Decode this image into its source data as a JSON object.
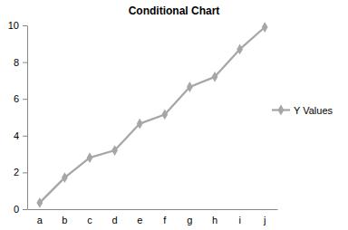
{
  "chart_data": {
    "type": "line",
    "title": "Conditional Chart",
    "categories": [
      "a",
      "b",
      "c",
      "d",
      "e",
      "f",
      "g",
      "h",
      "i",
      "j"
    ],
    "series": [
      {
        "name": "Y Values",
        "color": "#a6a6a6",
        "marker": "diamond",
        "values": [
          0.35,
          1.72,
          2.8,
          3.2,
          4.65,
          5.15,
          6.65,
          7.2,
          8.7,
          9.9
        ]
      }
    ],
    "ylim": [
      0,
      10
    ],
    "yticks": [
      0,
      2,
      4,
      6,
      8,
      10
    ],
    "grid": false,
    "legend": "right"
  }
}
